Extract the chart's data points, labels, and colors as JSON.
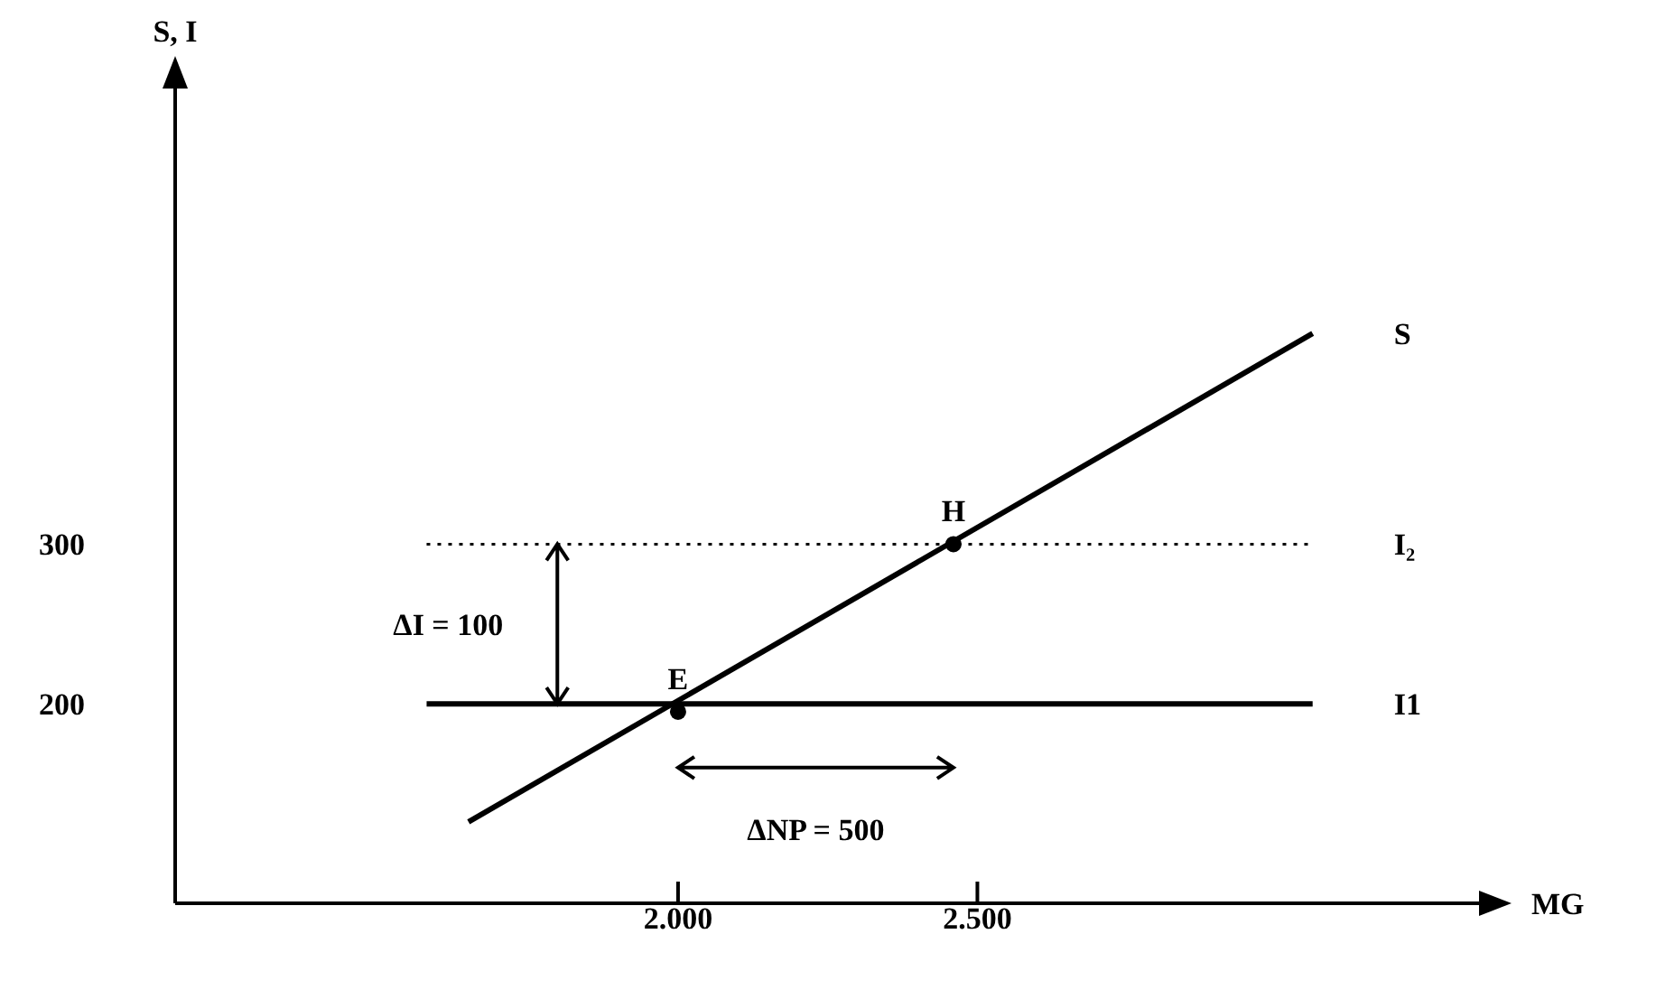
{
  "chart_data": {
    "type": "line",
    "xlabel": "MG",
    "ylabel": "S, I",
    "xlim": [
      1160,
      3350
    ],
    "ylim": [
      75,
      590
    ],
    "xticks": [
      {
        "value": 2000,
        "label": "2.000"
      },
      {
        "value": 2500,
        "label": "2.500"
      }
    ],
    "yticks": [
      200,
      300
    ],
    "grid": false,
    "marker": "none",
    "series": [
      {
        "name": "S",
        "color": "#000000",
        "line_style": "solid",
        "x": [
          1650,
          3060
        ],
        "values": [
          126,
          432
        ]
      },
      {
        "name": "I₂",
        "color": "#000000",
        "line_style": "dotted",
        "x": [
          1580,
          3060
        ],
        "values": [
          300,
          300
        ]
      },
      {
        "name": "I1",
        "color": "#000000",
        "line_style": "solid",
        "x": [
          1580,
          3060
        ],
        "values": [
          200,
          200
        ]
      },
      {
        "name": "E",
        "type": "scatter",
        "marker": "circle",
        "color": "#000000",
        "x": [
          2000
        ],
        "values": [
          195
        ]
      },
      {
        "name": "H",
        "type": "scatter",
        "marker": "circle",
        "color": "#000000",
        "x": [
          2460
        ],
        "values": [
          300
        ]
      }
    ],
    "annotations": [
      "ΔI = 100",
      "ΔNP = 500"
    ]
  }
}
